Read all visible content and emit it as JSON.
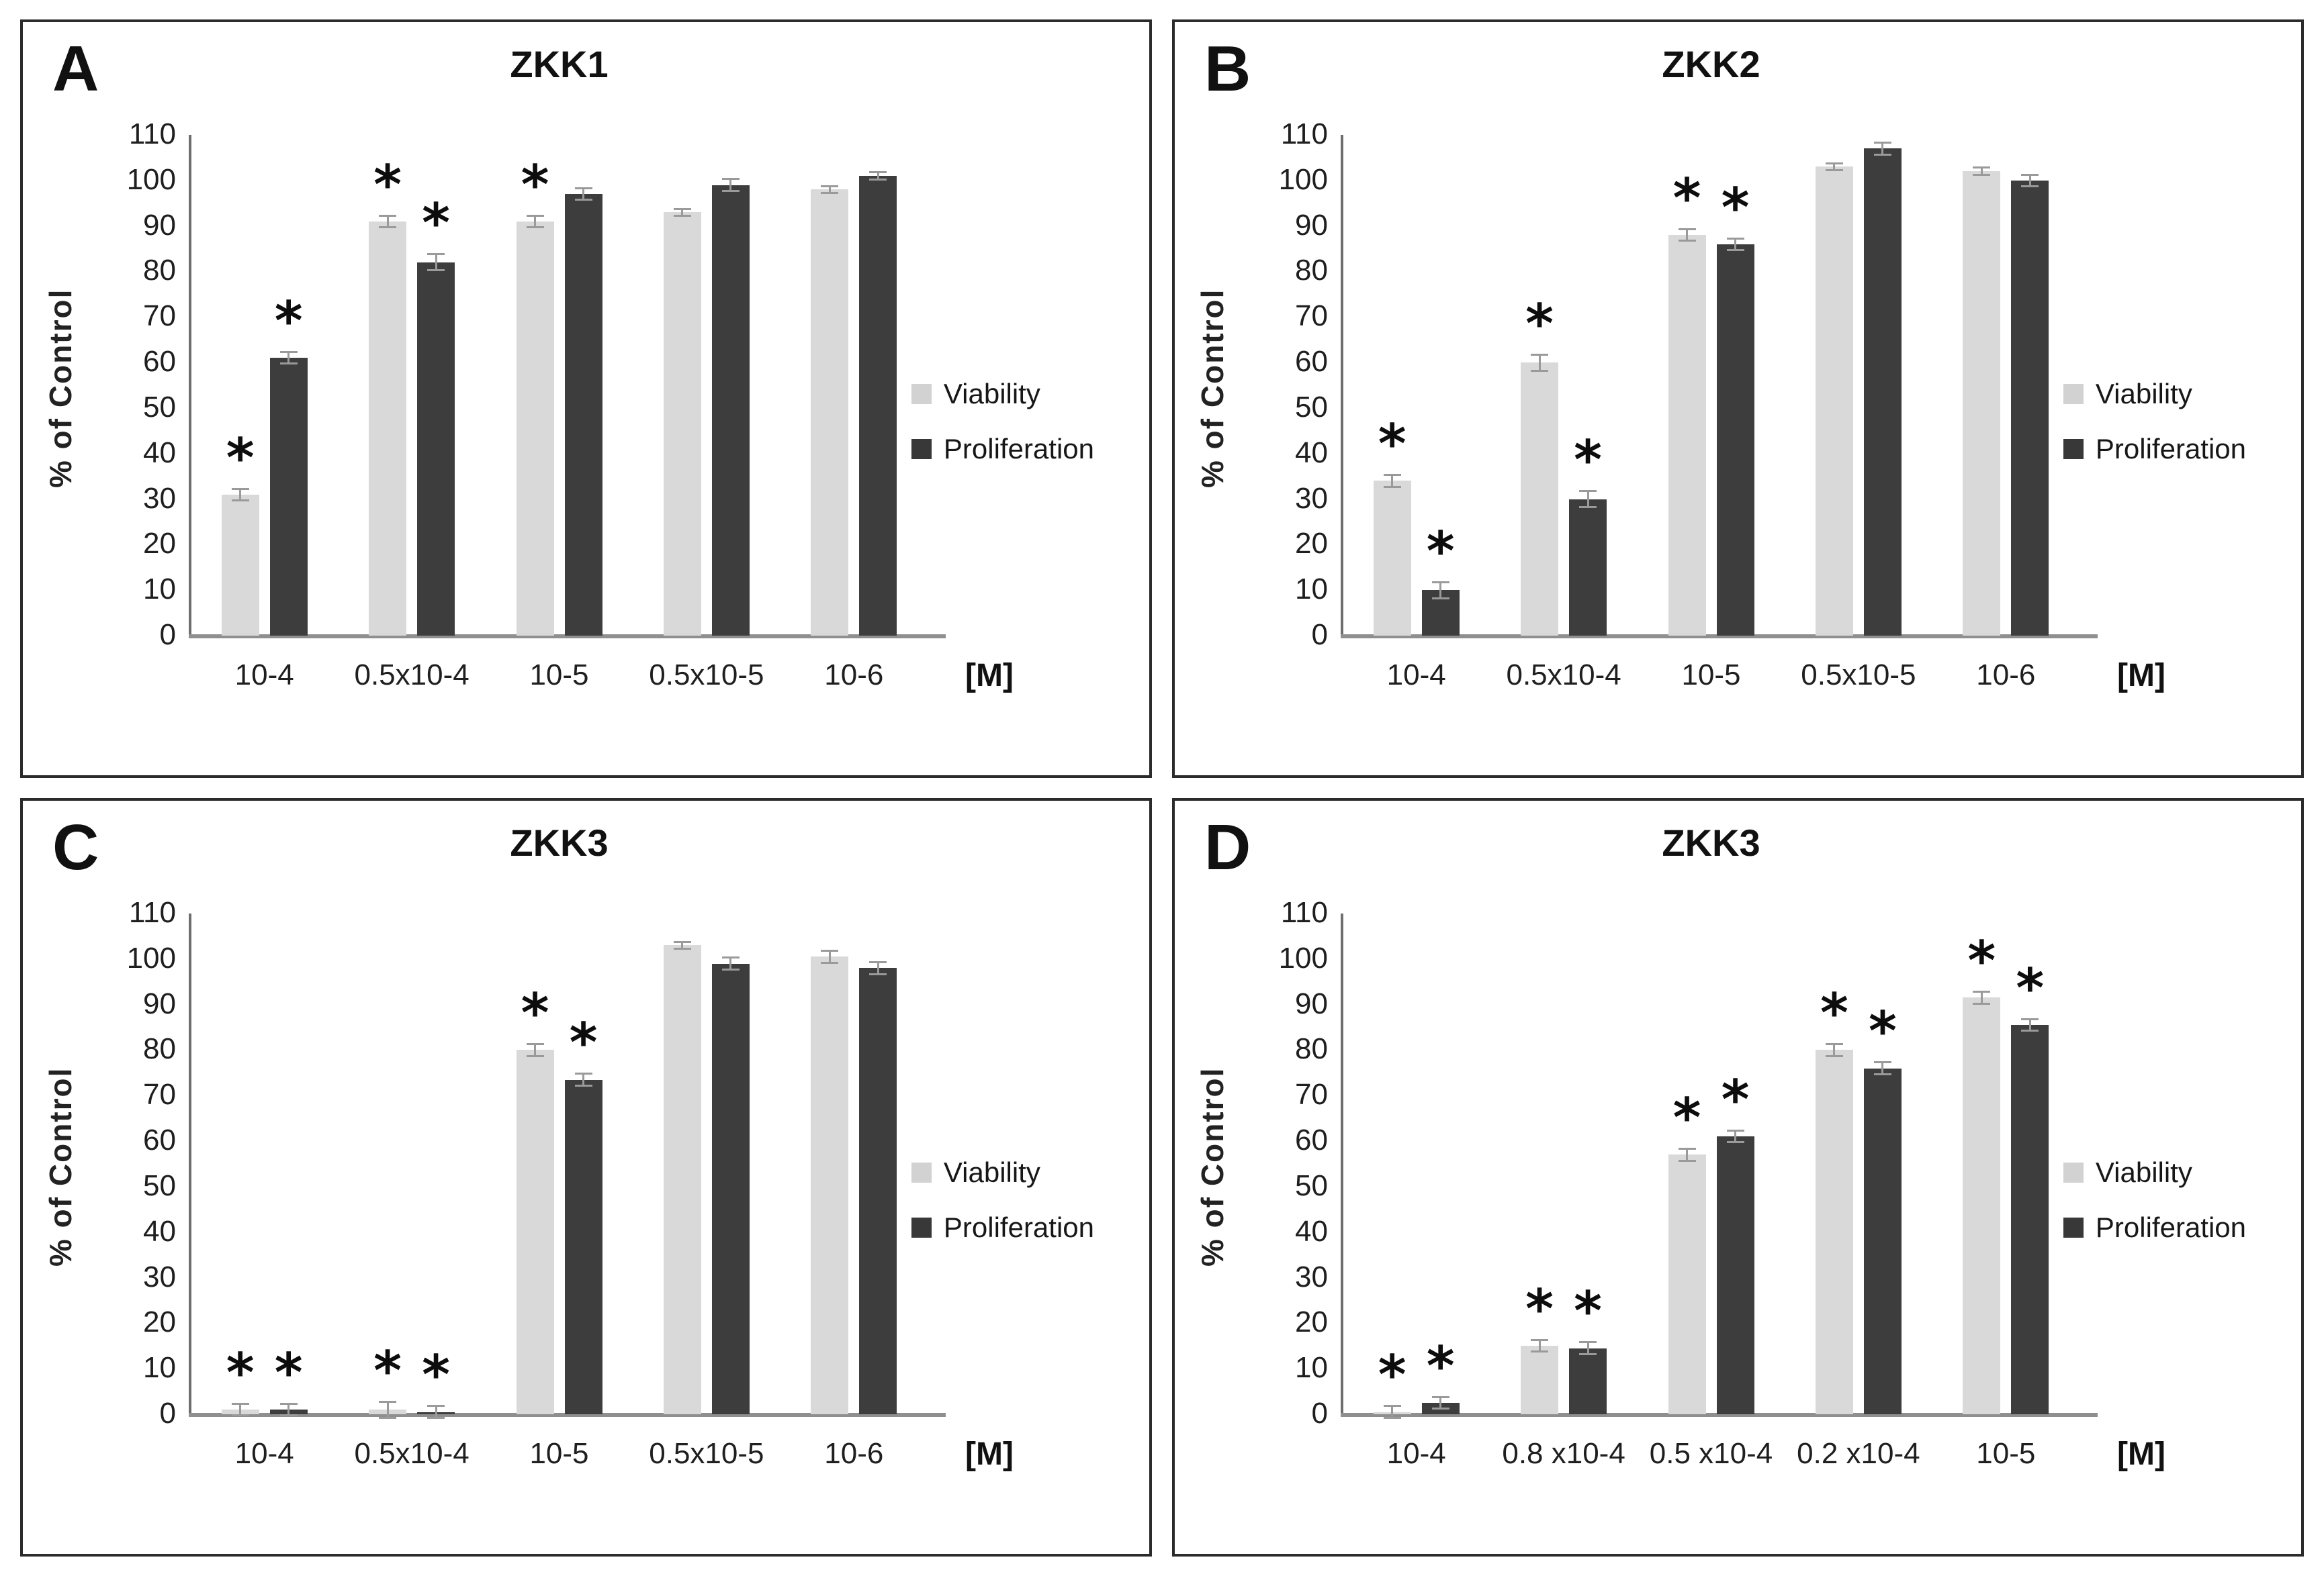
{
  "ylabel": "% of Control",
  "xunit": "[M]",
  "sig_marker": "*",
  "yticks": [
    0,
    10,
    20,
    30,
    40,
    50,
    60,
    70,
    80,
    90,
    100,
    110
  ],
  "colors": {
    "viability_bar": "#d9d9d9",
    "proliferation_bar": "#3d3d3d",
    "axis": "#6e6e6e",
    "baseline": "#8f8f8f",
    "error_bar": "#9a9a9a",
    "text": "#1f1f1f",
    "panel_border": "#2b2b2b"
  },
  "legend": {
    "viability_label": "Viability",
    "proliferation_label": "Proliferation"
  },
  "chart_data": [
    {
      "panel": "A",
      "type": "bar",
      "title": "ZKK1",
      "xlabel": "[M]",
      "ylabel": "% of Control",
      "ylim": [
        0,
        110
      ],
      "grid": false,
      "legend_position": "right",
      "categories": [
        "10-4",
        "0.5x10-4",
        "10-5",
        "0.5x10-5",
        "10-6"
      ],
      "series": [
        {
          "name": "Viability",
          "values": [
            31,
            91,
            91,
            93,
            98
          ],
          "errors": [
            1.5,
            1.5,
            1.5,
            1,
            1
          ],
          "significant": [
            true,
            true,
            true,
            false,
            false
          ]
        },
        {
          "name": "Proliferation",
          "values": [
            61,
            82,
            97,
            99,
            101
          ],
          "errors": [
            1.5,
            2,
            1.5,
            1.5,
            1
          ],
          "significant": [
            true,
            true,
            false,
            false,
            false
          ]
        }
      ]
    },
    {
      "panel": "B",
      "type": "bar",
      "title": "ZKK2",
      "xlabel": "[M]",
      "ylabel": "% of Control",
      "ylim": [
        0,
        110
      ],
      "grid": false,
      "legend_position": "right",
      "categories": [
        "10-4",
        "0.5x10-4",
        "10-5",
        "0.5x10-5",
        "10-6"
      ],
      "series": [
        {
          "name": "Viability",
          "values": [
            34,
            60,
            88,
            103,
            102
          ],
          "errors": [
            1.5,
            2,
            1.5,
            1,
            1
          ],
          "significant": [
            true,
            true,
            true,
            false,
            false
          ]
        },
        {
          "name": "Proliferation",
          "values": [
            10,
            30,
            86,
            107,
            100
          ],
          "errors": [
            2,
            2,
            1.5,
            1.5,
            1.5
          ],
          "significant": [
            true,
            true,
            true,
            false,
            false
          ]
        }
      ]
    },
    {
      "panel": "C",
      "type": "bar",
      "title": "ZKK3",
      "xlabel": "[M]",
      "ylabel": "% of Control",
      "ylim": [
        0,
        110
      ],
      "grid": false,
      "legend_position": "right",
      "categories": [
        "10-4",
        "0.5x10-4",
        "10-5",
        "0.5x10-5",
        "10-6"
      ],
      "series": [
        {
          "name": "Viability",
          "values": [
            1,
            1,
            80,
            103,
            100.5
          ],
          "errors": [
            1.5,
            2,
            1.5,
            1,
            1.5
          ],
          "significant": [
            true,
            true,
            true,
            false,
            false
          ]
        },
        {
          "name": "Proliferation",
          "values": [
            1,
            0.5,
            73.5,
            99,
            98
          ],
          "errors": [
            1.5,
            1.5,
            1.5,
            1.5,
            1.5
          ],
          "significant": [
            true,
            true,
            true,
            false,
            false
          ]
        }
      ]
    },
    {
      "panel": "D",
      "type": "bar",
      "title": "ZKK3",
      "xlabel": "[M]",
      "ylabel": "% of Control",
      "ylim": [
        0,
        110
      ],
      "grid": false,
      "legend_position": "right",
      "categories": [
        "10-4",
        "0.8 x10-4",
        "0.5 x10-4",
        "0.2 x10-4",
        "10-5"
      ],
      "series": [
        {
          "name": "Viability",
          "values": [
            0.5,
            15,
            57,
            80,
            91.5
          ],
          "errors": [
            1.5,
            1.5,
            1.5,
            1.5,
            1.5
          ],
          "significant": [
            true,
            true,
            true,
            true,
            true
          ]
        },
        {
          "name": "Proliferation",
          "values": [
            2.5,
            14.5,
            61,
            76,
            85.5
          ],
          "errors": [
            1.5,
            1.5,
            1.5,
            1.5,
            1.5
          ],
          "significant": [
            true,
            true,
            true,
            true,
            true
          ]
        }
      ]
    }
  ]
}
